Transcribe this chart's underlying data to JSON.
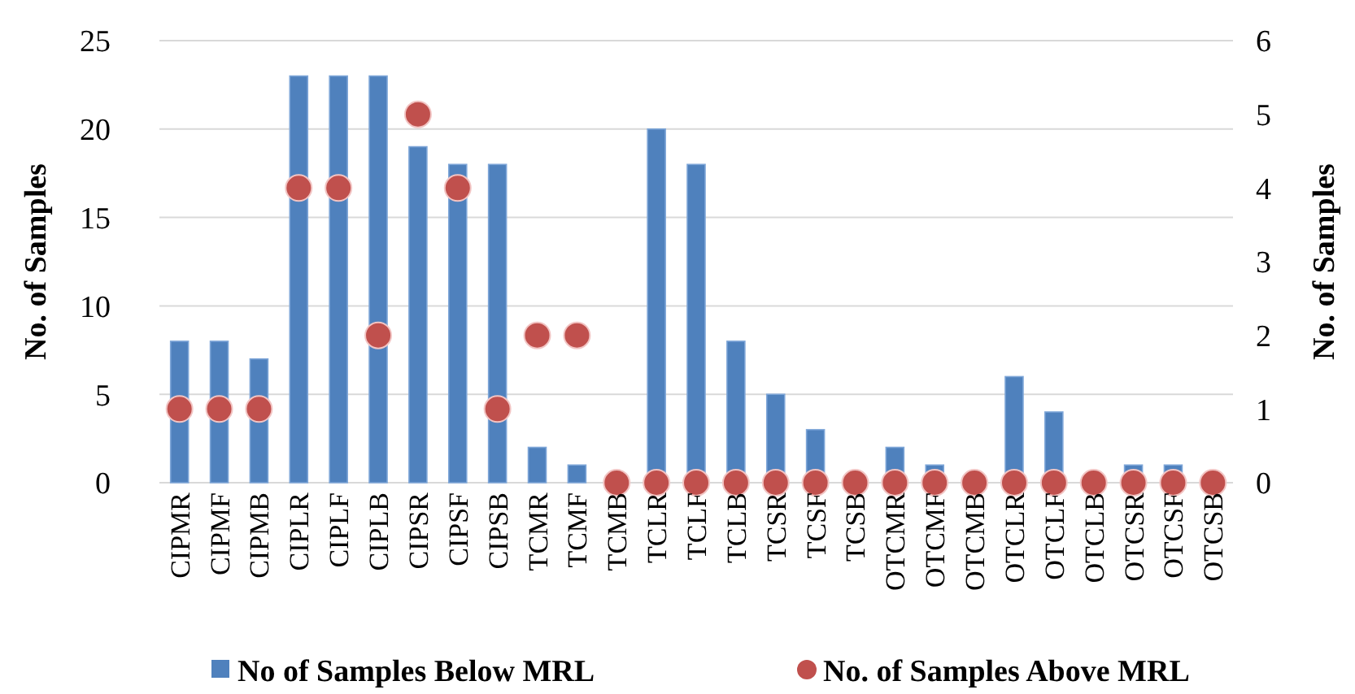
{
  "chart_data": {
    "type": "bar",
    "categories": [
      "CIPMR",
      "CIPMF",
      "CIPMB",
      "CIPLR",
      "CIPLF",
      "CIPLB",
      "CIPSR",
      "CIPSF",
      "CIPSB",
      "TCMR",
      "TCMF",
      "TCMB",
      "TCLR",
      "TCLF",
      "TCLB",
      "TCSR",
      "TCSF",
      "TCSB",
      "OTCMR",
      "OTCMF",
      "OTCMB",
      "OTCLR",
      "OTCLF",
      "OTCLB",
      "OTCSR",
      "OTCSF",
      "OTCSB"
    ],
    "series": [
      {
        "name": "No of Samples Below MRL",
        "color": "#4f81bd",
        "values": [
          8,
          8,
          7,
          23,
          23,
          23,
          19,
          18,
          18,
          2,
          1,
          0,
          20,
          18,
          8,
          5,
          3,
          0,
          2,
          1,
          0,
          6,
          4,
          0,
          1,
          1,
          0
        ]
      },
      {
        "name": "No. of Samples Above MRL",
        "type": "scatter",
        "axis": "y2",
        "color": "#c0504d",
        "values": [
          1,
          1,
          1,
          4,
          4,
          2,
          5,
          4,
          1,
          2,
          2,
          0,
          0,
          0,
          0,
          0,
          0,
          0,
          0,
          0,
          0,
          0,
          0,
          0,
          0,
          0,
          0
        ]
      }
    ],
    "ylabel": "No. of Samples",
    "y2label": "No. of Samples",
    "ylim": [
      0,
      25
    ],
    "yticks": [
      0,
      5,
      10,
      15,
      20,
      25
    ],
    "y2lim": [
      0,
      6
    ],
    "y2ticks": [
      0,
      1,
      2,
      3,
      4,
      5,
      6
    ],
    "grid": "y",
    "legend": "bottom",
    "marker": "circle"
  }
}
